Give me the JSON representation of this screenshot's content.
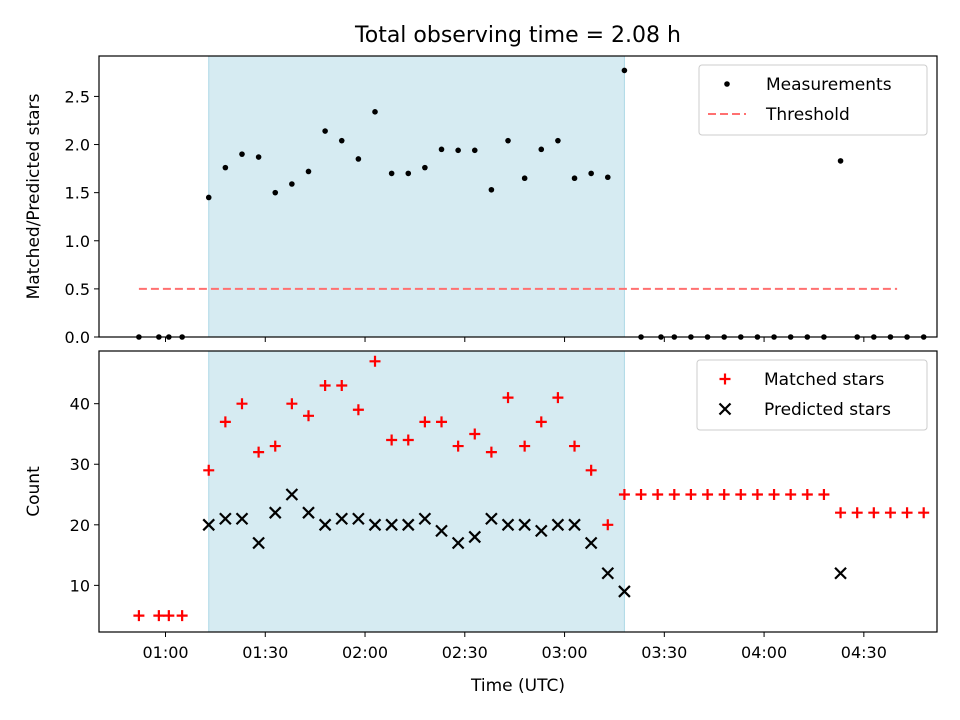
{
  "chart_data": {
    "title": "Total observing time = 2.08 h",
    "xlabel": "Time (UTC)",
    "x_ticks": [
      "01:00",
      "01:30",
      "02:00",
      "02:30",
      "03:00",
      "03:30",
      "04:00",
      "04:30"
    ],
    "x_tick_minutes": [
      60,
      90,
      120,
      150,
      180,
      210,
      240,
      270
    ],
    "xlim_minutes": [
      40,
      292
    ],
    "observing_window_minutes": [
      73,
      198
    ],
    "shade_color": "#add8e6",
    "panels": [
      {
        "type": "scatter",
        "ylabel": "Matched/Predicted stars",
        "ylim": [
          0,
          2.92
        ],
        "y_ticks": [
          "0.0",
          "0.5",
          "1.0",
          "1.5",
          "2.0",
          "2.5"
        ],
        "y_tick_values": [
          0,
          0.5,
          1.0,
          1.5,
          2.0,
          2.5
        ],
        "legend": [
          "Measurements",
          "Threshold"
        ],
        "threshold": {
          "value": 0.5,
          "x_range": [
            52,
            280
          ],
          "color": "#ff7070"
        },
        "series": [
          {
            "name": "Measurements",
            "marker": "dot",
            "color": "#000000",
            "x": [
              52,
              58,
              61,
              65,
              73,
              78,
              83,
              88,
              93,
              98,
              103,
              108,
              113,
              118,
              123,
              128,
              133,
              138,
              143,
              148,
              153,
              158,
              163,
              168,
              173,
              178,
              183,
              188,
              193,
              198,
              203,
              209,
              213,
              218,
              223,
              228,
              233,
              238,
              243,
              248,
              253,
              258,
              263,
              268,
              273,
              278,
              283,
              288
            ],
            "y": [
              0,
              0,
              0,
              0,
              1.45,
              1.76,
              1.9,
              1.87,
              1.5,
              1.59,
              1.72,
              2.14,
              2.04,
              1.85,
              2.34,
              1.7,
              1.7,
              1.76,
              1.95,
              1.94,
              1.94,
              1.53,
              2.04,
              1.65,
              1.95,
              2.04,
              1.65,
              1.7,
              1.66,
              2.77,
              0,
              0,
              0,
              0,
              0,
              0,
              0,
              0,
              0,
              0,
              0,
              0,
              1.83,
              0,
              0,
              0,
              0,
              0
            ]
          }
        ]
      },
      {
        "type": "scatter",
        "ylabel": "Count",
        "ylim": [
          2.3,
          48.7
        ],
        "y_ticks": [
          "10",
          "20",
          "30",
          "40"
        ],
        "y_tick_values": [
          10,
          20,
          30,
          40
        ],
        "legend": [
          "Matched stars",
          "Predicted stars"
        ],
        "series": [
          {
            "name": "Matched stars",
            "marker": "plus",
            "color": "#ff0000",
            "x": [
              52,
              58,
              61,
              65,
              73,
              78,
              83,
              88,
              93,
              98,
              103,
              108,
              113,
              118,
              123,
              128,
              133,
              138,
              143,
              148,
              153,
              158,
              163,
              168,
              173,
              178,
              183,
              188,
              193,
              198,
              203,
              208,
              213,
              218,
              223,
              228,
              233,
              238,
              243,
              248,
              253,
              258,
              263,
              268,
              273,
              278,
              283,
              288
            ],
            "y": [
              5,
              5,
              5,
              5,
              29,
              37,
              40,
              32,
              33,
              40,
              38,
              43,
              43,
              39,
              47,
              34,
              34,
              37,
              37,
              33,
              35,
              32,
              41,
              33,
              37,
              41,
              33,
              29,
              20,
              25,
              25,
              25,
              25,
              25,
              25,
              25,
              25,
              25,
              25,
              25,
              25,
              25,
              22,
              22,
              22,
              22,
              22,
              22
            ]
          },
          {
            "name": "Predicted stars",
            "marker": "x",
            "color": "#000000",
            "x": [
              73,
              78,
              83,
              88,
              93,
              98,
              103,
              108,
              113,
              118,
              123,
              128,
              133,
              138,
              143,
              148,
              153,
              158,
              163,
              168,
              173,
              178,
              183,
              188,
              193,
              198,
              263
            ],
            "y": [
              20,
              21,
              21,
              17,
              22,
              25,
              22,
              20,
              21,
              21,
              20,
              20,
              20,
              21,
              19,
              17,
              18,
              21,
              20,
              20,
              19,
              20,
              20,
              17,
              12,
              9,
              12
            ]
          }
        ]
      }
    ]
  }
}
